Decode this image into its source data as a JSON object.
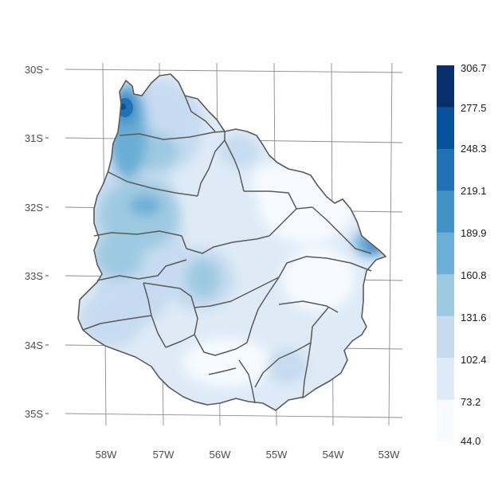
{
  "map": {
    "y_ticks": [
      "30S",
      "31S",
      "32S",
      "33S",
      "34S",
      "35S"
    ],
    "x_ticks": [
      "58W",
      "57W",
      "56W",
      "55W",
      "54W",
      "53W"
    ]
  },
  "legend": {
    "labels": [
      "306.7",
      "277.5",
      "248.3",
      "219.1",
      "189.9",
      "160.8",
      "131.6",
      "102.4",
      "73.2",
      "44.0"
    ],
    "colors": [
      "#08306b",
      "#08519c",
      "#2171b5",
      "#4292c6",
      "#6baed6",
      "#9ecae1",
      "#c6dbef",
      "#deebf7",
      "#f7fbff"
    ]
  },
  "colors": {
    "border": "#5a5a5a",
    "graticule": "#8c8c8c"
  }
}
